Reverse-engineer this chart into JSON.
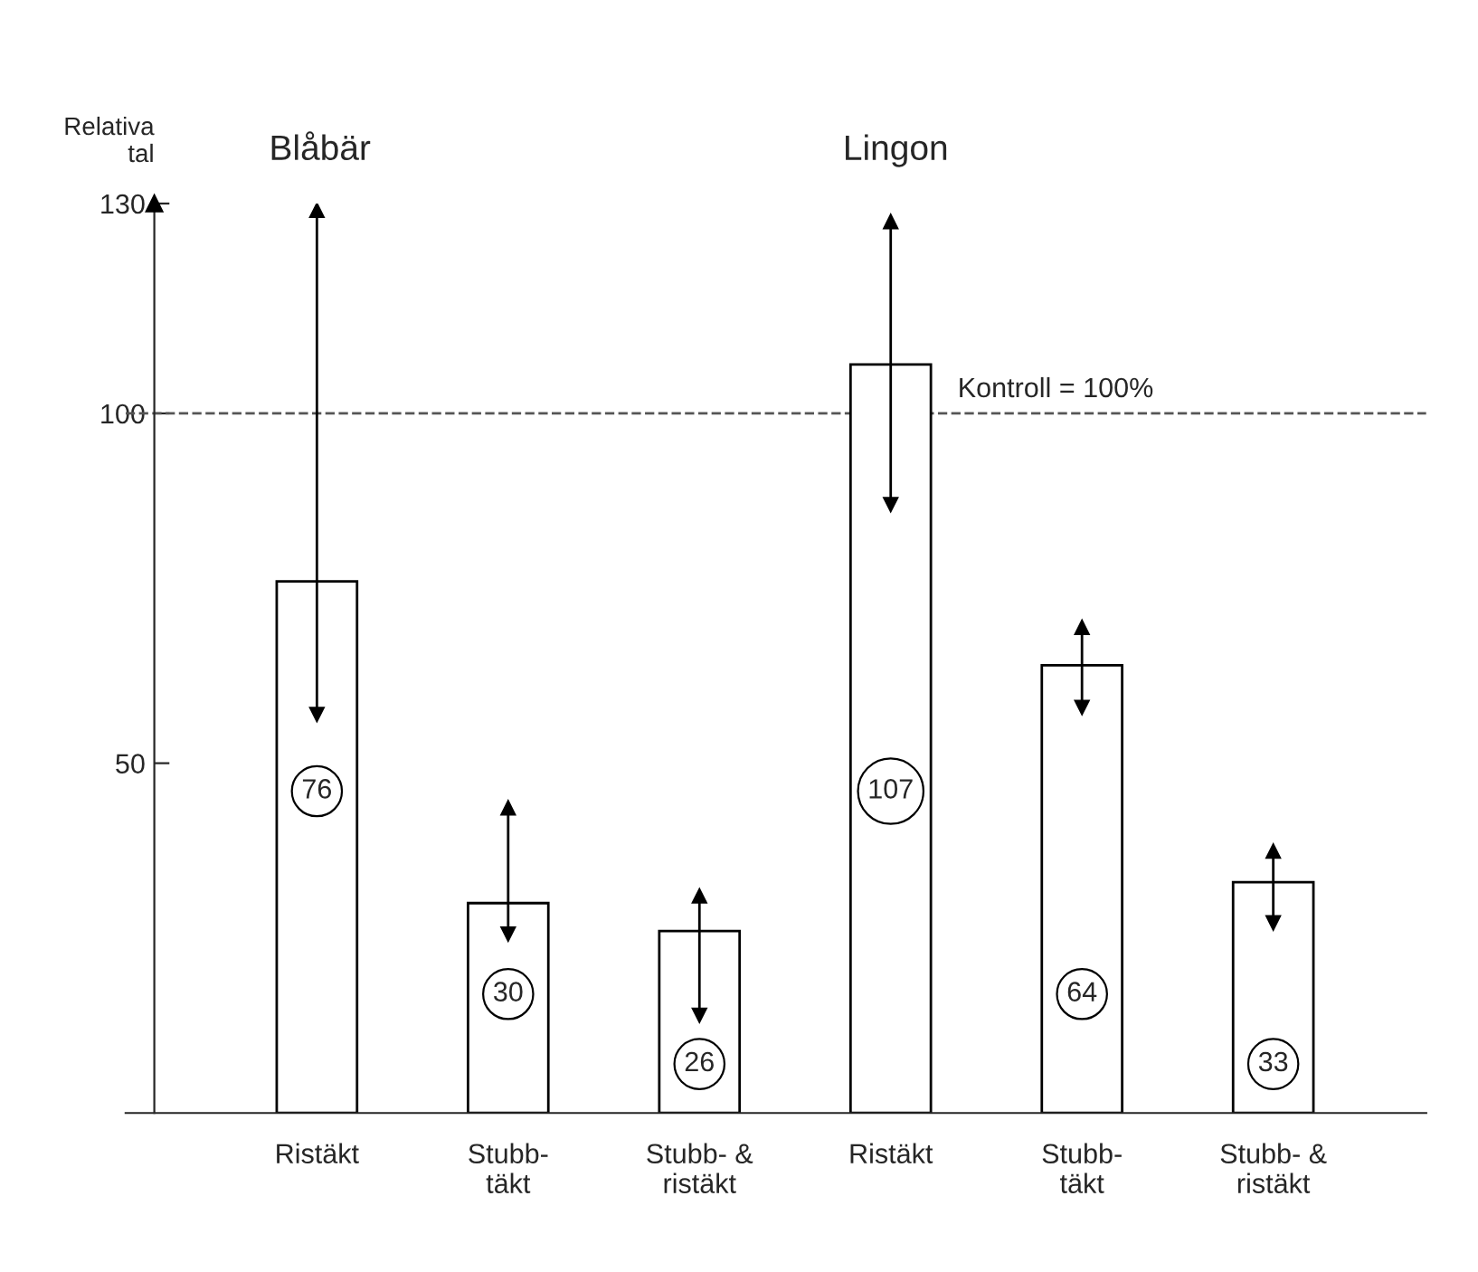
{
  "chart_data": {
    "type": "bar",
    "ylabel": "Relativa\ntal",
    "annotations": [
      "Blåbär",
      "Lingon"
    ],
    "categories": [
      "Ristäkt",
      "Stubb-\ntäkt",
      "Stubb- &\nristäkt",
      "Ristäkt",
      "Stubb-\ntäkt",
      "Stubb- &\nristäkt"
    ],
    "values": [
      76,
      30,
      26,
      107,
      64,
      33
    ],
    "errors": [
      [
        57,
        129
      ],
      [
        25.6,
        43.6
      ],
      [
        14,
        31
      ],
      [
        87,
        127.4
      ],
      [
        58,
        69.4
      ],
      [
        27.2,
        37.4
      ]
    ],
    "color": "#ffffff",
    "data_labels": true,
    "ylim": [
      0,
      130
    ],
    "yticks": [
      50,
      100,
      130
    ],
    "ref_lines": [
      {
        "axis": "y",
        "value": 100,
        "label": "Kontroll = 100%",
        "line_style": "dashed",
        "color": "#555555"
      }
    ],
    "grid": false,
    "legend": false
  }
}
